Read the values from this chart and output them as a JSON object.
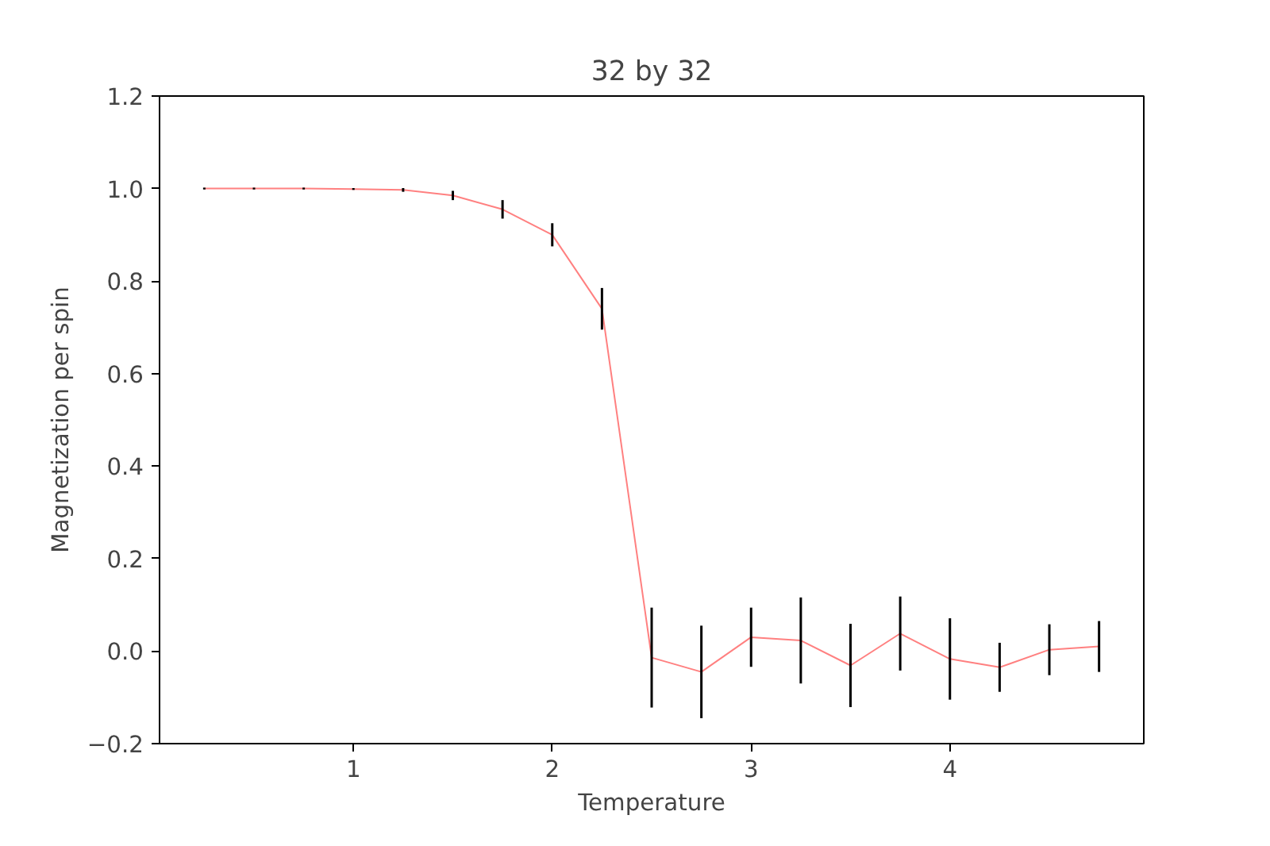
{
  "chart_data": {
    "type": "line",
    "title": "32 by 32",
    "xlabel": "Temperature",
    "ylabel": "Magnetization per spin",
    "x": [
      0.25,
      0.5,
      0.75,
      1.0,
      1.25,
      1.5,
      1.75,
      2.0,
      2.25,
      2.5,
      2.75,
      3.0,
      3.25,
      3.5,
      3.75,
      4.0,
      4.25,
      4.5,
      4.75
    ],
    "values": [
      1.0,
      1.0,
      1.0,
      0.999,
      0.997,
      0.985,
      0.955,
      0.9,
      0.74,
      -0.014,
      -0.045,
      0.03,
      0.023,
      -0.031,
      0.038,
      -0.017,
      -0.035,
      0.003,
      0.01
    ],
    "errors": [
      0.002,
      0.002,
      0.002,
      0.002,
      0.004,
      0.01,
      0.02,
      0.025,
      0.045,
      0.108,
      0.1,
      0.064,
      0.093,
      0.09,
      0.08,
      0.088,
      0.053,
      0.055,
      0.055
    ],
    "color": "#ff8080",
    "xlim": [
      0.025,
      4.975
    ],
    "ylim": [
      -0.2,
      1.2
    ],
    "xticks": [
      1,
      2,
      3,
      4
    ],
    "yticks": [
      {
        "value": -0.2,
        "label": "−0.2"
      },
      {
        "value": 0,
        "label": "0.0"
      },
      {
        "value": 0.2,
        "label": "0.2"
      },
      {
        "value": 0.4,
        "label": "0.4"
      },
      {
        "value": 0.6,
        "label": "0.6"
      },
      {
        "value": 0.8,
        "label": "0.8"
      },
      {
        "value": 1.0,
        "label": "1.0"
      },
      {
        "value": 1.2,
        "label": "1.2"
      }
    ],
    "grid": false,
    "marker": "none",
    "line_style": "solid"
  }
}
